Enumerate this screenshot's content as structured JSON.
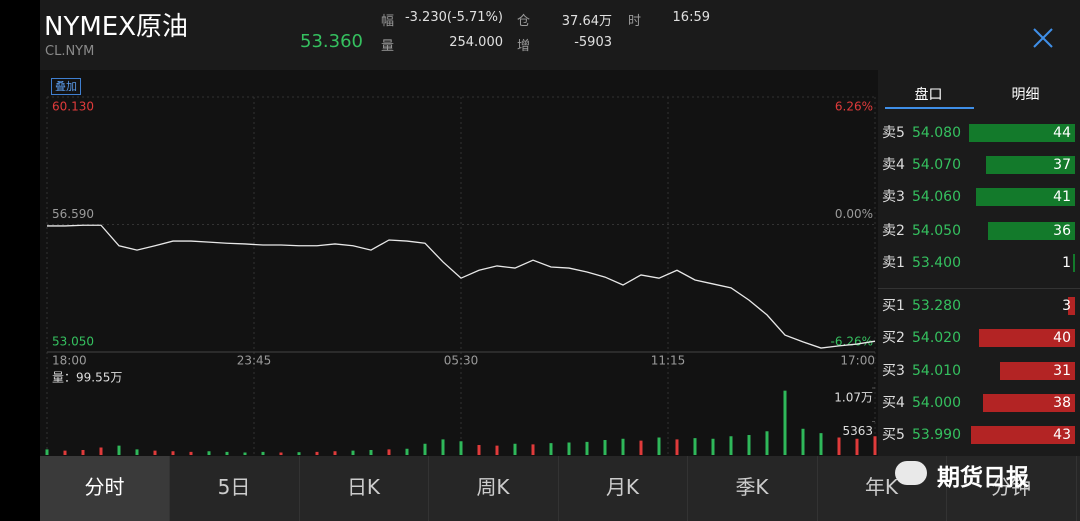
{
  "header": {
    "title": "NYMEX原油",
    "code": "CL.NYM",
    "price": "53.360",
    "stats": [
      {
        "label": "幅",
        "value": "-3.230(-5.71%)"
      },
      {
        "label": "仓",
        "value": "37.64万"
      },
      {
        "label": "时",
        "value": "16:59"
      },
      {
        "label": "量",
        "value": "254.000"
      },
      {
        "label": "增",
        "value": "-5903"
      }
    ]
  },
  "overlay_button": "叠加",
  "chart_data": [
    {
      "type": "line",
      "x": [
        0,
        30,
        60,
        90,
        120,
        150,
        180,
        210,
        240,
        270,
        300,
        330,
        360,
        390,
        420,
        450,
        480,
        510,
        540,
        570,
        600,
        630,
        660,
        690,
        720,
        750,
        780,
        810,
        840,
        870,
        900,
        930,
        960,
        990,
        1020,
        1050,
        1080,
        1110,
        1140,
        1170,
        1200,
        1230,
        1260,
        1290,
        1320,
        1350,
        1380
      ],
      "series": [
        {
          "color": "#e8e8e8",
          "values": [
            56.55,
            56.55,
            56.57,
            56.57,
            56.0,
            55.88,
            56.0,
            56.13,
            56.13,
            56.1,
            56.07,
            56.05,
            56.02,
            56.02,
            56.0,
            56.0,
            56.05,
            56.0,
            55.88,
            56.16,
            56.13,
            56.07,
            55.55,
            55.1,
            55.32,
            55.44,
            55.38,
            55.6,
            55.41,
            55.38,
            55.27,
            55.13,
            54.91,
            55.19,
            55.1,
            55.32,
            55.05,
            54.94,
            54.83,
            54.49,
            54.08,
            53.52,
            53.33,
            53.16,
            53.22,
            53.27,
            53.35
          ]
        }
      ],
      "xlim": [
        0,
        1380
      ],
      "xticks": [
        {
          "value": 0,
          "label": "18:00"
        },
        {
          "value": 345,
          "label": "23:45"
        },
        {
          "value": 690,
          "label": "05:30"
        },
        {
          "value": 1035,
          "label": "11:15"
        },
        {
          "value": 1380,
          "label": "17:00"
        }
      ],
      "ylim": [
        53.05,
        60.13
      ],
      "yticks": [
        {
          "value": 60.13,
          "label": "60.130"
        },
        {
          "value": 56.59,
          "label": "56.590"
        },
        {
          "value": 53.05,
          "label": "53.050"
        }
      ],
      "y2lim": [
        -6.26,
        6.26
      ],
      "y2ticks": [
        {
          "value": 6.26,
          "label": "6.26%"
        },
        {
          "value": 0,
          "label": "0.00%"
        },
        {
          "value": -6.26,
          "label": "-6.26%"
        }
      ],
      "grid": true
    },
    {
      "type": "bar",
      "title": "量：99.55万",
      "x": [
        0,
        30,
        60,
        90,
        120,
        150,
        180,
        210,
        240,
        270,
        300,
        330,
        360,
        390,
        420,
        450,
        480,
        510,
        540,
        570,
        600,
        630,
        660,
        690,
        720,
        750,
        780,
        810,
        840,
        870,
        900,
        930,
        960,
        990,
        1020,
        1050,
        1080,
        1110,
        1140,
        1170,
        1200,
        1230,
        1260,
        1290,
        1320,
        1350,
        1380
      ],
      "values": [
        900,
        700,
        800,
        1200,
        1500,
        900,
        700,
        600,
        500,
        600,
        500,
        400,
        500,
        400,
        450,
        500,
        600,
        700,
        800,
        900,
        1000,
        1800,
        2500,
        2200,
        1600,
        1500,
        1800,
        1700,
        1900,
        2000,
        2100,
        2400,
        2600,
        2300,
        2800,
        2500,
        2700,
        2600,
        3000,
        3200,
        3800,
        10300,
        4200,
        3500,
        2800,
        2600,
        3000
      ],
      "colors": [
        "#e03b3b",
        "#2fb85a"
      ],
      "xlim": [
        0,
        1380
      ],
      "ylim": [
        0,
        10726
      ],
      "yticks": [
        {
          "value": 10726,
          "label": "1.07万"
        },
        5363
      ]
    }
  ],
  "order_book": {
    "tabs": [
      "盘口",
      "明细"
    ],
    "asks": [
      {
        "label": "卖5",
        "price": "54.080",
        "qty": 44
      },
      {
        "label": "卖4",
        "price": "54.070",
        "qty": 37
      },
      {
        "label": "卖3",
        "price": "54.060",
        "qty": 41
      },
      {
        "label": "卖2",
        "price": "54.050",
        "qty": 36
      },
      {
        "label": "卖1",
        "price": "53.400",
        "qty": 1
      }
    ],
    "bids": [
      {
        "label": "买1",
        "price": "53.280",
        "qty": 3
      },
      {
        "label": "买2",
        "price": "54.020",
        "qty": 40
      },
      {
        "label": "买3",
        "price": "54.010",
        "qty": 31
      },
      {
        "label": "买4",
        "price": "54.000",
        "qty": 38
      },
      {
        "label": "买5",
        "price": "53.990",
        "qty": 43
      }
    ]
  },
  "bottom_tabs": [
    "分时",
    "5日",
    "日K",
    "周K",
    "月K",
    "季K",
    "年K",
    "分钟"
  ],
  "watermark": "期货日报"
}
